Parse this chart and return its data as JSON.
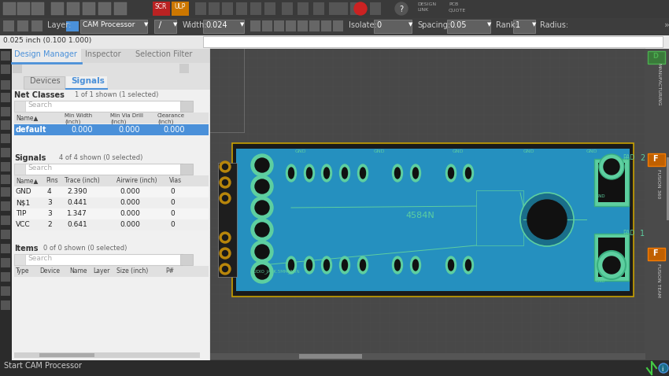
{
  "fig_width": 8.5,
  "fig_height": 4.78,
  "dpi": 100,
  "bg_color": "#3c3c3c",
  "toolbar1_bg": "#3a3a3a",
  "toolbar2_bg": "#3d3d3d",
  "cmdbar_bg": "#e8e8e8",
  "left_sidebar_bg": "#2b2b2b",
  "panel_bg": "#ebebeb",
  "panel_inner_bg": "#f5f5f5",
  "canvas_bg": "#484848",
  "grid_color": "#525252",
  "tab_active_color": "#4a90d9",
  "highlight_blue": "#4a90d9",
  "pcb_blue": "#2590bf",
  "pcb_dark_blue": "#1a7a9e",
  "pcb_pad_color": "#5dcfa0",
  "pcb_outline_color": "#c8a000",
  "pcb_black": "#111111",
  "right_sidebar_bg": "#4a4a4a",
  "status_bar_bg": "#2b2b2b",
  "net_classes_header": "Net Classes",
  "net_classes_count": "1 of 1 shown (1 selected)",
  "signals_header": "Signals",
  "signals_count": "4 of 4 shown (0 selected)",
  "items_header": "Items",
  "items_count": "0 of 0 shown (0 selected)",
  "signal_rows": [
    [
      "GND",
      "4",
      "2.390",
      "0.000",
      "0"
    ],
    [
      "N$1",
      "3",
      "0.441",
      "0.000",
      "0"
    ],
    [
      "TIP",
      "3",
      "1.347",
      "0.000",
      "0"
    ],
    [
      "VCC",
      "2",
      "0.641",
      "0.000",
      "0"
    ]
  ],
  "netclass_row": [
    "default",
    "0.000",
    "0.000",
    "0.000"
  ],
  "tabs": [
    "Design Manager",
    "Inspector",
    "Selection Filter"
  ],
  "subtabs": [
    "Devices",
    "Signals"
  ],
  "layer_label": "Layer:",
  "layer_name": "CAM Processor",
  "width_label": "Width:",
  "width_value": "0.024",
  "isolate_label": "Isolate:",
  "isolate_value": "0",
  "spacing_label": "Spacing:",
  "spacing_value": "0.05",
  "rank_label": "Rank:",
  "rank_value": "1",
  "radius_label": "Radius:",
  "cmd_bar_text": "0.025 inch (0.100 1.000)",
  "status_text": "Start CAM Processor"
}
